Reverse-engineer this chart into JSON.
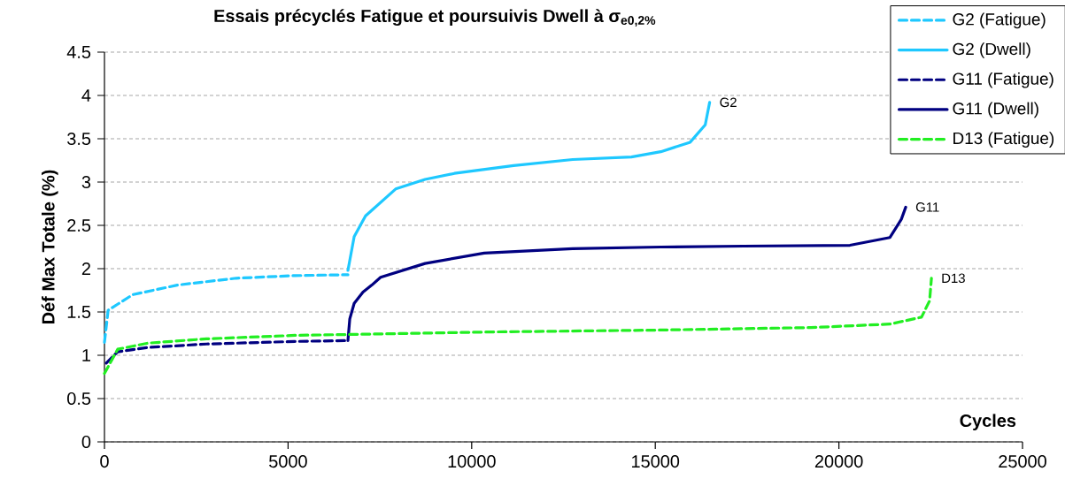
{
  "chart_data": {
    "type": "line",
    "title": "Essais précyclés Fatigue et poursuivis Dwell à σ$_{e0,2%}$",
    "xlabel": "Cycles",
    "ylabel": "Déf Max Totale (%)",
    "xlim": [
      0,
      25000
    ],
    "xticks": [
      0,
      5000,
      10000,
      15000,
      20000,
      25000
    ],
    "ylim": [
      0,
      4.5
    ],
    "yticks": [
      0,
      0.5,
      1,
      1.5,
      2,
      2.5,
      3,
      3.5,
      4,
      4.5
    ],
    "grid": "y",
    "legend": "top right",
    "series": [
      {
        "name": "G2 (Fatigue)",
        "color": "#1ec8ff",
        "line_style": "dashed",
        "x": [
          0,
          100,
          770,
          1980,
          3590,
          5190,
          6630
        ],
        "values": [
          1.15,
          1.52,
          1.7,
          1.81,
          1.89,
          1.92,
          1.93
        ]
      },
      {
        "name": "G2 (Dwell)",
        "color": "#1ec8ff",
        "line_style": "solid",
        "x": [
          6630,
          6800,
          7110,
          7930,
          8730,
          9530,
          11140,
          12750,
          14350,
          15150,
          15950,
          16360,
          16480
        ],
        "values": [
          1.98,
          2.37,
          2.61,
          2.92,
          3.03,
          3.1,
          3.19,
          3.26,
          3.29,
          3.35,
          3.46,
          3.66,
          3.92
        ]
      },
      {
        "name": "G11 (Fatigue)",
        "color": "#000080",
        "line_style": "dashed",
        "x": [
          50,
          360,
          1180,
          2780,
          5190,
          6630
        ],
        "values": [
          0.91,
          1.04,
          1.09,
          1.13,
          1.16,
          1.17
        ]
      },
      {
        "name": "G11 (Dwell)",
        "color": "#000080",
        "line_style": "solid",
        "x": [
          6630,
          6680,
          6800,
          7040,
          7280,
          7520,
          8730,
          10340,
          12750,
          15150,
          17400,
          20300,
          21390,
          21700,
          21820
        ],
        "values": [
          1.17,
          1.42,
          1.6,
          1.73,
          1.81,
          1.9,
          2.06,
          2.18,
          2.23,
          2.25,
          2.26,
          2.27,
          2.36,
          2.57,
          2.71
        ]
      },
      {
        "name": "D13 (Fatigue)",
        "color": "#22ee22",
        "line_style": "dashed",
        "x": [
          0,
          360,
          1180,
          2780,
          5190,
          6630,
          10630,
          14920,
          19240,
          21390,
          22250,
          22470,
          22520
        ],
        "values": [
          0.79,
          1.07,
          1.14,
          1.19,
          1.23,
          1.24,
          1.27,
          1.29,
          1.32,
          1.36,
          1.44,
          1.63,
          1.89
        ]
      }
    ],
    "annotations": [
      {
        "text": "G2",
        "x": 16480,
        "y": 3.92
      },
      {
        "text": "G11",
        "x": 21820,
        "y": 2.71
      },
      {
        "text": "D13",
        "x": 22520,
        "y": 1.89
      }
    ]
  }
}
